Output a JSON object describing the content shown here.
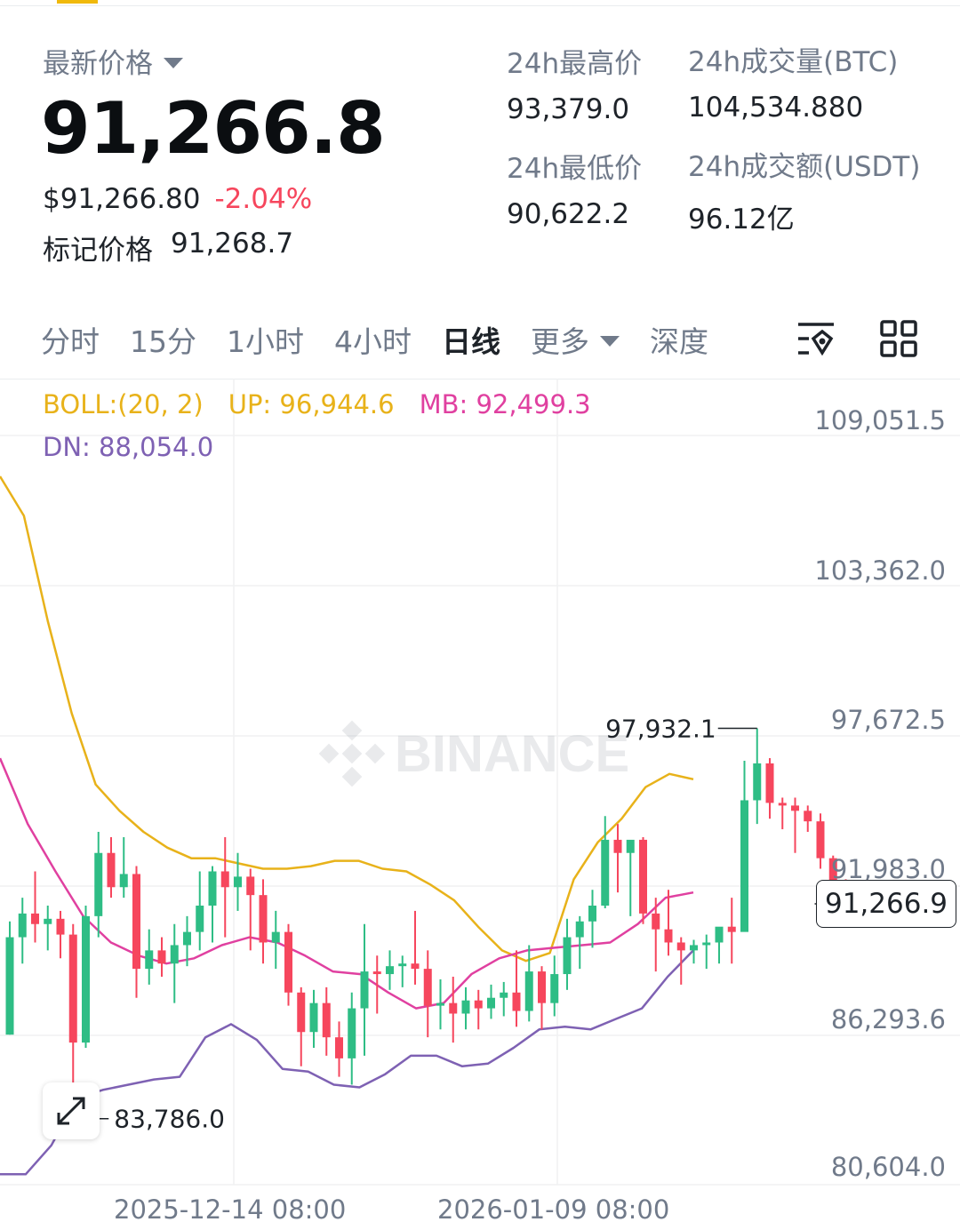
{
  "header": {
    "latest_label": "最新价格",
    "last_price": "91,266.8",
    "usd_price": "$91,266.80",
    "change_pct": "-2.04%",
    "mark_label": "标记价格",
    "mark_price": "91,268.7"
  },
  "stats": {
    "high_label": "24h最高价",
    "high_value": "93,379.0",
    "low_label": "24h最低价",
    "low_value": "90,622.2",
    "vol_btc_label": "24h成交量(BTC)",
    "vol_btc_value": "104,534.880",
    "vol_usdt_label": "24h成交额(USDT)",
    "vol_usdt_value": "96.12亿"
  },
  "tabs": [
    {
      "label": "分时",
      "active": false
    },
    {
      "label": "15分",
      "active": false
    },
    {
      "label": "1小时",
      "active": false
    },
    {
      "label": "4小时",
      "active": false
    },
    {
      "label": "日线",
      "active": true
    },
    {
      "label": "更多",
      "active": false
    },
    {
      "label": "深度",
      "active": false
    }
  ],
  "toolbar_icons": [
    "chart-settings-icon",
    "grid-layout-icon"
  ],
  "indicator": {
    "name": "BOLL:(20, 2)",
    "up": "UP: 96,944.6",
    "mb": "MB: 92,499.3",
    "dn": "DN: 88,054.0"
  },
  "colors": {
    "up_candle": "#2ebd85",
    "down_candle": "#f6465d",
    "boll_up": "#e8b21a",
    "boll_mb": "#e040a0",
    "boll_dn": "#7e61b3",
    "accent": "#f0b90b"
  },
  "watermark": "BINANCE",
  "chart_data": {
    "type": "candlestick",
    "y_axis_ticks": [
      "109,051.5",
      "103,362.0",
      "97,672.5",
      "91,983.0",
      "86,293.6",
      "80,604.0"
    ],
    "ylim": [
      80604.0,
      109051.5
    ],
    "x_axis_ticks": [
      "2025-12-14 08:00",
      "2026-01-09 08:00"
    ],
    "current_price_tag": "91,266.9",
    "high_marker": "97,932.1",
    "low_marker": "83,786.0",
    "grid": true,
    "candles": [
      {
        "o": 86300,
        "h": 90600,
        "l": 86300,
        "c": 90000
      },
      {
        "o": 90000,
        "h": 91500,
        "l": 89000,
        "c": 90900
      },
      {
        "o": 90900,
        "h": 92500,
        "l": 89800,
        "c": 90500
      },
      {
        "o": 90500,
        "h": 91200,
        "l": 89500,
        "c": 90700
      },
      {
        "o": 90700,
        "h": 91000,
        "l": 89200,
        "c": 90100
      },
      {
        "o": 90100,
        "h": 90500,
        "l": 83786,
        "c": 86000
      },
      {
        "o": 86000,
        "h": 91200,
        "l": 85800,
        "c": 90800
      },
      {
        "o": 90800,
        "h": 94000,
        "l": 90000,
        "c": 93200
      },
      {
        "o": 93200,
        "h": 93800,
        "l": 91500,
        "c": 91900
      },
      {
        "o": 91900,
        "h": 93800,
        "l": 91500,
        "c": 92400
      },
      {
        "o": 92400,
        "h": 92700,
        "l": 87700,
        "c": 88800
      },
      {
        "o": 88800,
        "h": 90300,
        "l": 88200,
        "c": 89500
      },
      {
        "o": 89500,
        "h": 90000,
        "l": 88500,
        "c": 89000
      },
      {
        "o": 89000,
        "h": 90500,
        "l": 87500,
        "c": 89700
      },
      {
        "o": 89700,
        "h": 90800,
        "l": 88900,
        "c": 90200
      },
      {
        "o": 90200,
        "h": 92500,
        "l": 89500,
        "c": 91200
      },
      {
        "o": 91200,
        "h": 92700,
        "l": 89800,
        "c": 92500
      },
      {
        "o": 92500,
        "h": 93800,
        "l": 90000,
        "c": 91900
      },
      {
        "o": 91900,
        "h": 93200,
        "l": 91000,
        "c": 92300
      },
      {
        "o": 92300,
        "h": 92600,
        "l": 89500,
        "c": 91600
      },
      {
        "o": 91600,
        "h": 92200,
        "l": 89000,
        "c": 89800
      },
      {
        "o": 89800,
        "h": 91000,
        "l": 88800,
        "c": 90200
      },
      {
        "o": 90200,
        "h": 90500,
        "l": 87400,
        "c": 87900
      },
      {
        "o": 87900,
        "h": 88100,
        "l": 85100,
        "c": 86400
      },
      {
        "o": 86400,
        "h": 88000,
        "l": 85800,
        "c": 87500
      },
      {
        "o": 87500,
        "h": 88100,
        "l": 85500,
        "c": 86200
      },
      {
        "o": 86200,
        "h": 86800,
        "l": 84700,
        "c": 85400
      },
      {
        "o": 85400,
        "h": 87900,
        "l": 84400,
        "c": 87300
      },
      {
        "o": 87300,
        "h": 90500,
        "l": 85500,
        "c": 88700
      },
      {
        "o": 88700,
        "h": 89300,
        "l": 87100,
        "c": 88600
      },
      {
        "o": 88600,
        "h": 89500,
        "l": 88000,
        "c": 88900
      },
      {
        "o": 88900,
        "h": 89300,
        "l": 88100,
        "c": 89000
      },
      {
        "o": 89000,
        "h": 91000,
        "l": 88200,
        "c": 88800
      },
      {
        "o": 88800,
        "h": 89500,
        "l": 86200,
        "c": 87400
      },
      {
        "o": 87400,
        "h": 88400,
        "l": 86500,
        "c": 87500
      },
      {
        "o": 87500,
        "h": 88500,
        "l": 86000,
        "c": 87100
      },
      {
        "o": 87100,
        "h": 88100,
        "l": 86500,
        "c": 87600
      },
      {
        "o": 87600,
        "h": 88000,
        "l": 86500,
        "c": 87300
      },
      {
        "o": 87300,
        "h": 88200,
        "l": 86900,
        "c": 87700
      },
      {
        "o": 87700,
        "h": 88300,
        "l": 87000,
        "c": 87900
      },
      {
        "o": 87900,
        "h": 89500,
        "l": 86600,
        "c": 87200
      },
      {
        "o": 87200,
        "h": 89700,
        "l": 86800,
        "c": 88700
      },
      {
        "o": 88700,
        "h": 88900,
        "l": 86500,
        "c": 87500
      },
      {
        "o": 87500,
        "h": 89300,
        "l": 87000,
        "c": 88600
      },
      {
        "o": 88600,
        "h": 90700,
        "l": 88000,
        "c": 90000
      },
      {
        "o": 90000,
        "h": 90800,
        "l": 88800,
        "c": 90600
      },
      {
        "o": 90600,
        "h": 91800,
        "l": 89600,
        "c": 91200
      },
      {
        "o": 91200,
        "h": 94600,
        "l": 91100,
        "c": 93700
      },
      {
        "o": 93700,
        "h": 94300,
        "l": 91700,
        "c": 93200
      },
      {
        "o": 93200,
        "h": 93600,
        "l": 90800,
        "c": 93700
      },
      {
        "o": 93700,
        "h": 93800,
        "l": 90500,
        "c": 90900
      },
      {
        "o": 90900,
        "h": 91500,
        "l": 88700,
        "c": 90300
      },
      {
        "o": 90300,
        "h": 91800,
        "l": 89300,
        "c": 89800
      },
      {
        "o": 89800,
        "h": 90000,
        "l": 88200,
        "c": 89500
      },
      {
        "o": 89500,
        "h": 89900,
        "l": 89000,
        "c": 89700
      },
      {
        "o": 89700,
        "h": 90100,
        "l": 88800,
        "c": 89800
      },
      {
        "o": 89800,
        "h": 90300,
        "l": 89000,
        "c": 90400
      },
      {
        "o": 90400,
        "h": 91500,
        "l": 89000,
        "c": 90200
      },
      {
        "o": 90200,
        "h": 96700,
        "l": 90300,
        "c": 95200
      },
      {
        "o": 95200,
        "h": 97932.1,
        "l": 94300,
        "c": 96600
      },
      {
        "o": 96600,
        "h": 96800,
        "l": 94500,
        "c": 95100
      },
      {
        "o": 95100,
        "h": 95300,
        "l": 94100,
        "c": 95000
      },
      {
        "o": 95000,
        "h": 95300,
        "l": 93200,
        "c": 94800
      },
      {
        "o": 94800,
        "h": 95000,
        "l": 94000,
        "c": 94400
      },
      {
        "o": 94400,
        "h": 94700,
        "l": 92600,
        "c": 93000
      },
      {
        "o": 93000,
        "h": 93100,
        "l": 91900,
        "c": 92100
      },
      {
        "o": 92100,
        "h": 92200,
        "l": 90500,
        "c": 91267
      }
    ],
    "boll_up_series": [
      107500,
      106000,
      102000,
      98500,
      95800,
      94800,
      94000,
      93400,
      93000,
      93000,
      92800,
      92600,
      92600,
      92700,
      92900,
      92900,
      92600,
      92500,
      92000,
      91400,
      90400,
      89500,
      89100,
      89400,
      92200,
      93600,
      94500,
      95700,
      96200,
      96000
    ],
    "boll_mb_series": [
      96800,
      94300,
      92500,
      90800,
      89800,
      89300,
      89000,
      89200,
      89700,
      90000,
      89800,
      89300,
      88700,
      88600,
      87900,
      87300,
      87500,
      88600,
      89200,
      89500,
      89600,
      89700,
      89800,
      90500,
      91500,
      91700
    ],
    "boll_dn_series": [
      81000,
      81000,
      82100,
      83900,
      84200,
      84400,
      84600,
      84700,
      86200,
      86700,
      86100,
      85000,
      84900,
      84400,
      84300,
      84800,
      85500,
      85500,
      85100,
      85200,
      85800,
      86500,
      86600,
      86500,
      86900,
      87300,
      88500,
      89500
    ]
  }
}
